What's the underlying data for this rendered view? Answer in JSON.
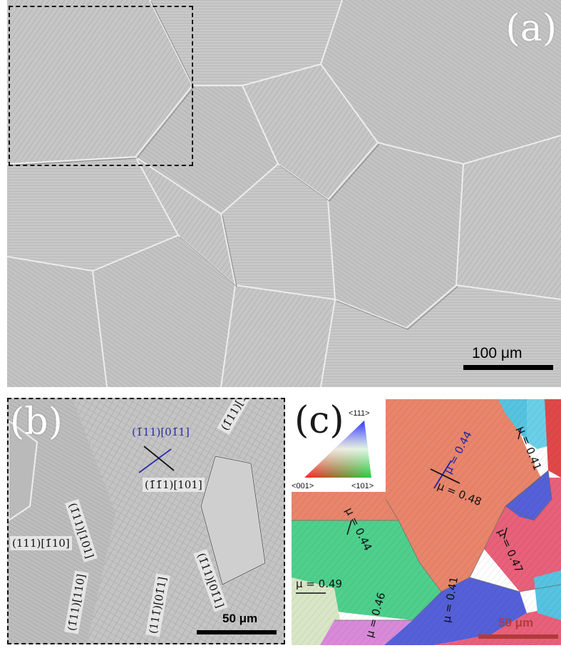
{
  "panel_a": {
    "letter": "(a)",
    "scale_bar_label": "100 μm"
  },
  "panel_b": {
    "letter": "(b)",
    "scale_bar_label": "50 μm",
    "slip_labels": [
      {
        "text": "(1̄11)[01̄1]",
        "color": "#2c2ca8"
      },
      {
        "text": "(1̄1̄1)[101]",
        "color": "#111111"
      },
      {
        "text": "(1̄11)[101]",
        "color": "#111111"
      },
      {
        "text": "(1̄11)[101]",
        "color": "#111111"
      },
      {
        "text": "(111)[1̄10]",
        "color": "#111111"
      },
      {
        "text": "(1̄11)[110]",
        "color": "#111111"
      },
      {
        "text": "(111̄)[01̄1]",
        "color": "#111111"
      },
      {
        "text": "(1̄11)[01̄1]",
        "color": "#111111"
      }
    ]
  },
  "panel_c": {
    "letter": "(c)",
    "scale_bar_label": "50 μm",
    "ipf_legend": {
      "top": "<111>",
      "left": "<001>",
      "right": "<101>"
    },
    "schmid_factors": [
      {
        "text": "μ = 0.44",
        "color": "#2323a8"
      },
      {
        "text": "μ = 0.48",
        "color": "#111111"
      },
      {
        "text": "μ = 0.47",
        "color": "#111111"
      },
      {
        "text": "μ = 0.44",
        "color": "#111111"
      },
      {
        "text": "μ = 0.49",
        "color": "#111111"
      },
      {
        "text": "μ = 0.46",
        "color": "#111111"
      },
      {
        "text": "μ = 0.41",
        "color": "#111111"
      },
      {
        "text": "μ = 0.41",
        "color": "#111111"
      }
    ],
    "grain_colors": {
      "orange": "#e8856b",
      "green": "#4fcf8c",
      "blue": "#5560d8",
      "pink": "#e8607a",
      "magenta": "#d88ad8",
      "cyan": "#56c3e0",
      "beige": "#d9e6c6",
      "red": "#e04848"
    }
  }
}
